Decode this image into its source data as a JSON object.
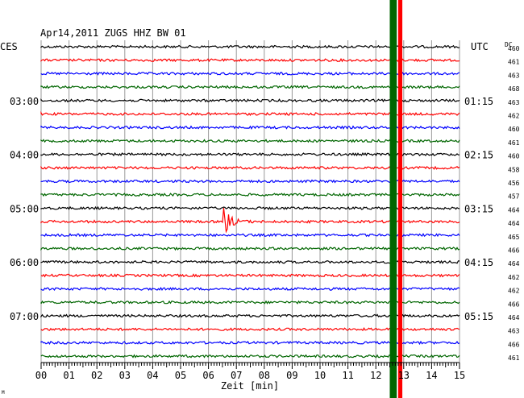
{
  "chart_data": {
    "type": "line",
    "title": "Apr14,2011   ZUGS HHZ BW 01",
    "left_timezone": "CES",
    "right_timezone": "UTC",
    "dc_header": "DC",
    "xlabel": "Zeit [min]",
    "xlim": [
      0,
      15
    ],
    "x_ticks": [
      "00",
      "01",
      "02",
      "03",
      "04",
      "05",
      "06",
      "07",
      "08",
      "09",
      "10",
      "11",
      "12",
      "13",
      "14",
      "15"
    ],
    "grid": true,
    "trace_colors": [
      "#000000",
      "#ff0000",
      "#0000ff",
      "#006600"
    ],
    "traces_count": 24,
    "hour_labels_left": [
      {
        "trace": 4,
        "text": "03:00"
      },
      {
        "trace": 8,
        "text": "04:00"
      },
      {
        "trace": 12,
        "text": "05:00"
      },
      {
        "trace": 16,
        "text": "06:00"
      },
      {
        "trace": 20,
        "text": "07:00"
      }
    ],
    "hour_labels_right": [
      {
        "trace": 4,
        "text": "01:15"
      },
      {
        "trace": 8,
        "text": "02:15"
      },
      {
        "trace": 12,
        "text": "03:15"
      },
      {
        "trace": 16,
        "text": "04:15"
      },
      {
        "trace": 20,
        "text": "05:15"
      }
    ],
    "dc_values": [
      "460",
      "461",
      "463",
      "468",
      "463",
      "462",
      "460",
      "461",
      "460",
      "458",
      "456",
      "457",
      "464",
      "464",
      "465",
      "466",
      "464",
      "462",
      "462",
      "466",
      "464",
      "463",
      "466",
      "461"
    ],
    "events": [
      {
        "trace": 13,
        "x_min": 6.6,
        "amplitude": "large"
      }
    ],
    "vertical_bands": [
      {
        "x_min": 12.5,
        "width_min": 0.25,
        "color": "#006600"
      },
      {
        "x_min": 12.8,
        "width_min": 0.15,
        "color": "#ff0000"
      }
    ],
    "footnote": "M"
  }
}
